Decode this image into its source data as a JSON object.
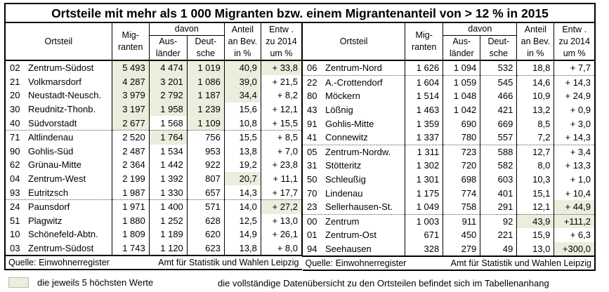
{
  "title": "Ortsteile mit mehr als 1 000 Migranten bzw. einem Migrantenanteil von > 12 % in 2015",
  "headers": {
    "ortsteil": "Ortsteil",
    "migranten": "Mig-\nranten",
    "davon": "davon",
    "auslaender": "Aus-\nländer",
    "deutsche": "Deut-\nsche",
    "anteil": "Anteil\nan Bev.\nin %",
    "entw": "Entw .\nzu 2014\num %"
  },
  "left_rows": [
    {
      "nr": "02",
      "name": "Zentrum-Südost",
      "mig": "5 493",
      "aus": "4 474",
      "deu": "1 019",
      "ant": "40,9",
      "entw": "+ 33,8",
      "hl": [
        1,
        1,
        1,
        1,
        1
      ]
    },
    {
      "nr": "21",
      "name": "Volkmarsdorf",
      "mig": "4 287",
      "aus": "3 201",
      "deu": "1 086",
      "ant": "39,0",
      "entw": "+ 21,5",
      "hl": [
        1,
        1,
        1,
        1,
        0
      ]
    },
    {
      "nr": "20",
      "name": "Neustadt-Neusch.",
      "mig": "3 979",
      "aus": "2 792",
      "deu": "1 187",
      "ant": "34,4",
      "entw": "+ 8,2",
      "hl": [
        1,
        1,
        1,
        1,
        0
      ]
    },
    {
      "nr": "30",
      "name": "Reudnitz-Thonb.",
      "mig": "3 197",
      "aus": "1 958",
      "deu": "1 239",
      "ant": "15,6",
      "entw": "+ 12,1",
      "hl": [
        1,
        1,
        1,
        0,
        0
      ]
    },
    {
      "nr": "40",
      "name": "Südvorstadt",
      "mig": "2 677",
      "aus": "1 568",
      "deu": "1 109",
      "ant": "10,8",
      "entw": "+ 15,5",
      "hl": [
        1,
        0,
        1,
        0,
        0
      ]
    },
    {
      "nr": "71",
      "name": "Altlindenau",
      "mig": "2 520",
      "aus": "1 764",
      "deu": "756",
      "ant": "15,5",
      "entw": "+ 8,5",
      "hl": [
        0,
        1,
        0,
        0,
        0
      ],
      "sep": true
    },
    {
      "nr": "90",
      "name": "Gohlis-Süd",
      "mig": "2 487",
      "aus": "1 534",
      "deu": "953",
      "ant": "13,8",
      "entw": "+ 7,0",
      "hl": [
        0,
        0,
        0,
        0,
        0
      ]
    },
    {
      "nr": "62",
      "name": "Grünau-Mitte",
      "mig": "2 364",
      "aus": "1 442",
      "deu": "922",
      "ant": "19,2",
      "entw": "+ 23,8",
      "hl": [
        0,
        0,
        0,
        0,
        0
      ]
    },
    {
      "nr": "04",
      "name": "Zentrum-West",
      "mig": "2 199",
      "aus": "1 392",
      "deu": "807",
      "ant": "20,7",
      "entw": "+ 11,1",
      "hl": [
        0,
        0,
        0,
        1,
        0
      ]
    },
    {
      "nr": "93",
      "name": "Eutritzsch",
      "mig": "1 987",
      "aus": "1 330",
      "deu": "657",
      "ant": "14,3",
      "entw": "+ 17,7",
      "hl": [
        0,
        0,
        0,
        0,
        0
      ]
    },
    {
      "nr": "24",
      "name": "Paunsdorf",
      "mig": "1 971",
      "aus": "1 400",
      "deu": "571",
      "ant": "14,0",
      "entw": "+ 27,2",
      "hl": [
        0,
        0,
        0,
        0,
        1
      ],
      "sep": true
    },
    {
      "nr": "51",
      "name": "Plagwitz",
      "mig": "1 880",
      "aus": "1 252",
      "deu": "628",
      "ant": "12,5",
      "entw": "+ 13,0",
      "hl": [
        0,
        0,
        0,
        0,
        0
      ]
    },
    {
      "nr": "10",
      "name": "Schönefeld-Abtn.",
      "mig": "1 809",
      "aus": "1 189",
      "deu": "620",
      "ant": "14,9",
      "entw": "+ 26,1",
      "hl": [
        0,
        0,
        0,
        0,
        0
      ]
    },
    {
      "nr": "03",
      "name": "Zentrum-Südost",
      "mig": "1 743",
      "aus": "1 120",
      "deu": "623",
      "ant": "13,8",
      "entw": "+ 8,0",
      "hl": [
        0,
        0,
        0,
        0,
        0
      ]
    }
  ],
  "right_rows": [
    {
      "nr": "06",
      "name": "Zentrum-Nord",
      "mig": "1 626",
      "aus": "1 094",
      "deu": "532",
      "ant": "18,8",
      "entw": "+ 7,7",
      "hl": [
        0,
        0,
        0,
        0,
        0
      ]
    },
    {
      "nr": "22",
      "name": "A.-Crottendorf",
      "mig": "1 604",
      "aus": "1 059",
      "deu": "545",
      "ant": "14,6",
      "entw": "+ 14,3",
      "hl": [
        0,
        0,
        0,
        0,
        0
      ],
      "sep": true
    },
    {
      "nr": "80",
      "name": "Möckern",
      "mig": "1 514",
      "aus": "1 048",
      "deu": "466",
      "ant": "10,9",
      "entw": "+ 24,9",
      "hl": [
        0,
        0,
        0,
        0,
        0
      ]
    },
    {
      "nr": "43",
      "name": "Lößnig",
      "mig": "1 463",
      "aus": "1 042",
      "deu": "421",
      "ant": "13,2",
      "entw": "+ 0,9",
      "hl": [
        0,
        0,
        0,
        0,
        0
      ]
    },
    {
      "nr": "91",
      "name": "Gohlis-Mitte",
      "mig": "1 359",
      "aus": "690",
      "deu": "669",
      "ant": "8,5",
      "entw": "+ 3,0",
      "hl": [
        0,
        0,
        0,
        0,
        0
      ]
    },
    {
      "nr": "41",
      "name": "Connewitz",
      "mig": "1 337",
      "aus": "780",
      "deu": "557",
      "ant": "7,2",
      "entw": "+ 14,3",
      "hl": [
        0,
        0,
        0,
        0,
        0
      ]
    },
    {
      "nr": "05",
      "name": "Zentrum-Nordw.",
      "mig": "1 311",
      "aus": "723",
      "deu": "588",
      "ant": "12,7",
      "entw": "+ 3,4",
      "hl": [
        0,
        0,
        0,
        0,
        0
      ],
      "sep": true
    },
    {
      "nr": "31",
      "name": "Stötteritz",
      "mig": "1 302",
      "aus": "720",
      "deu": "582",
      "ant": "8,0",
      "entw": "+ 13,3",
      "hl": [
        0,
        0,
        0,
        0,
        0
      ]
    },
    {
      "nr": "50",
      "name": "Schleußig",
      "mig": "1 301",
      "aus": "698",
      "deu": "603",
      "ant": "10,3",
      "entw": "+ 1,0",
      "hl": [
        0,
        0,
        0,
        0,
        0
      ]
    },
    {
      "nr": "70",
      "name": "Lindenau",
      "mig": "1 175",
      "aus": "774",
      "deu": "401",
      "ant": "15,1",
      "entw": "+ 10,4",
      "hl": [
        0,
        0,
        0,
        0,
        0
      ]
    },
    {
      "nr": "23",
      "name": "Sellerhausen-St.",
      "mig": "1 049",
      "aus": "758",
      "deu": "291",
      "ant": "12,1",
      "entw": "+ 44,9",
      "hl": [
        0,
        0,
        0,
        0,
        1
      ]
    },
    {
      "nr": "00",
      "name": "Zentrum",
      "mig": "1 003",
      "aus": "911",
      "deu": "92",
      "ant": "43,9",
      "entw": "+111,2",
      "hl": [
        0,
        0,
        0,
        1,
        1
      ],
      "sep": true
    },
    {
      "nr": "01",
      "name": "Zentrum-Ost",
      "mig": "671",
      "aus": "450",
      "deu": "221",
      "ant": "15,9",
      "entw": "+ 6,3",
      "hl": [
        0,
        0,
        0,
        0,
        0
      ]
    },
    {
      "nr": "94",
      "name": "Seehausen",
      "mig": "328",
      "aus": "279",
      "deu": "49",
      "ant": "13,0",
      "entw": "+300,0",
      "hl": [
        0,
        0,
        0,
        0,
        1
      ]
    }
  ],
  "source": "Quelle: Einwohnerregister",
  "publisher": "Amt für Statistik und Wahlen Leipzig",
  "legend": "die jeweils 5 höchsten Werte",
  "note": "die vollständige Datenübersicht zu den Ortsteilen befindet sich im Tabellenanhang",
  "colors": {
    "highlight": "#e9eedd"
  }
}
